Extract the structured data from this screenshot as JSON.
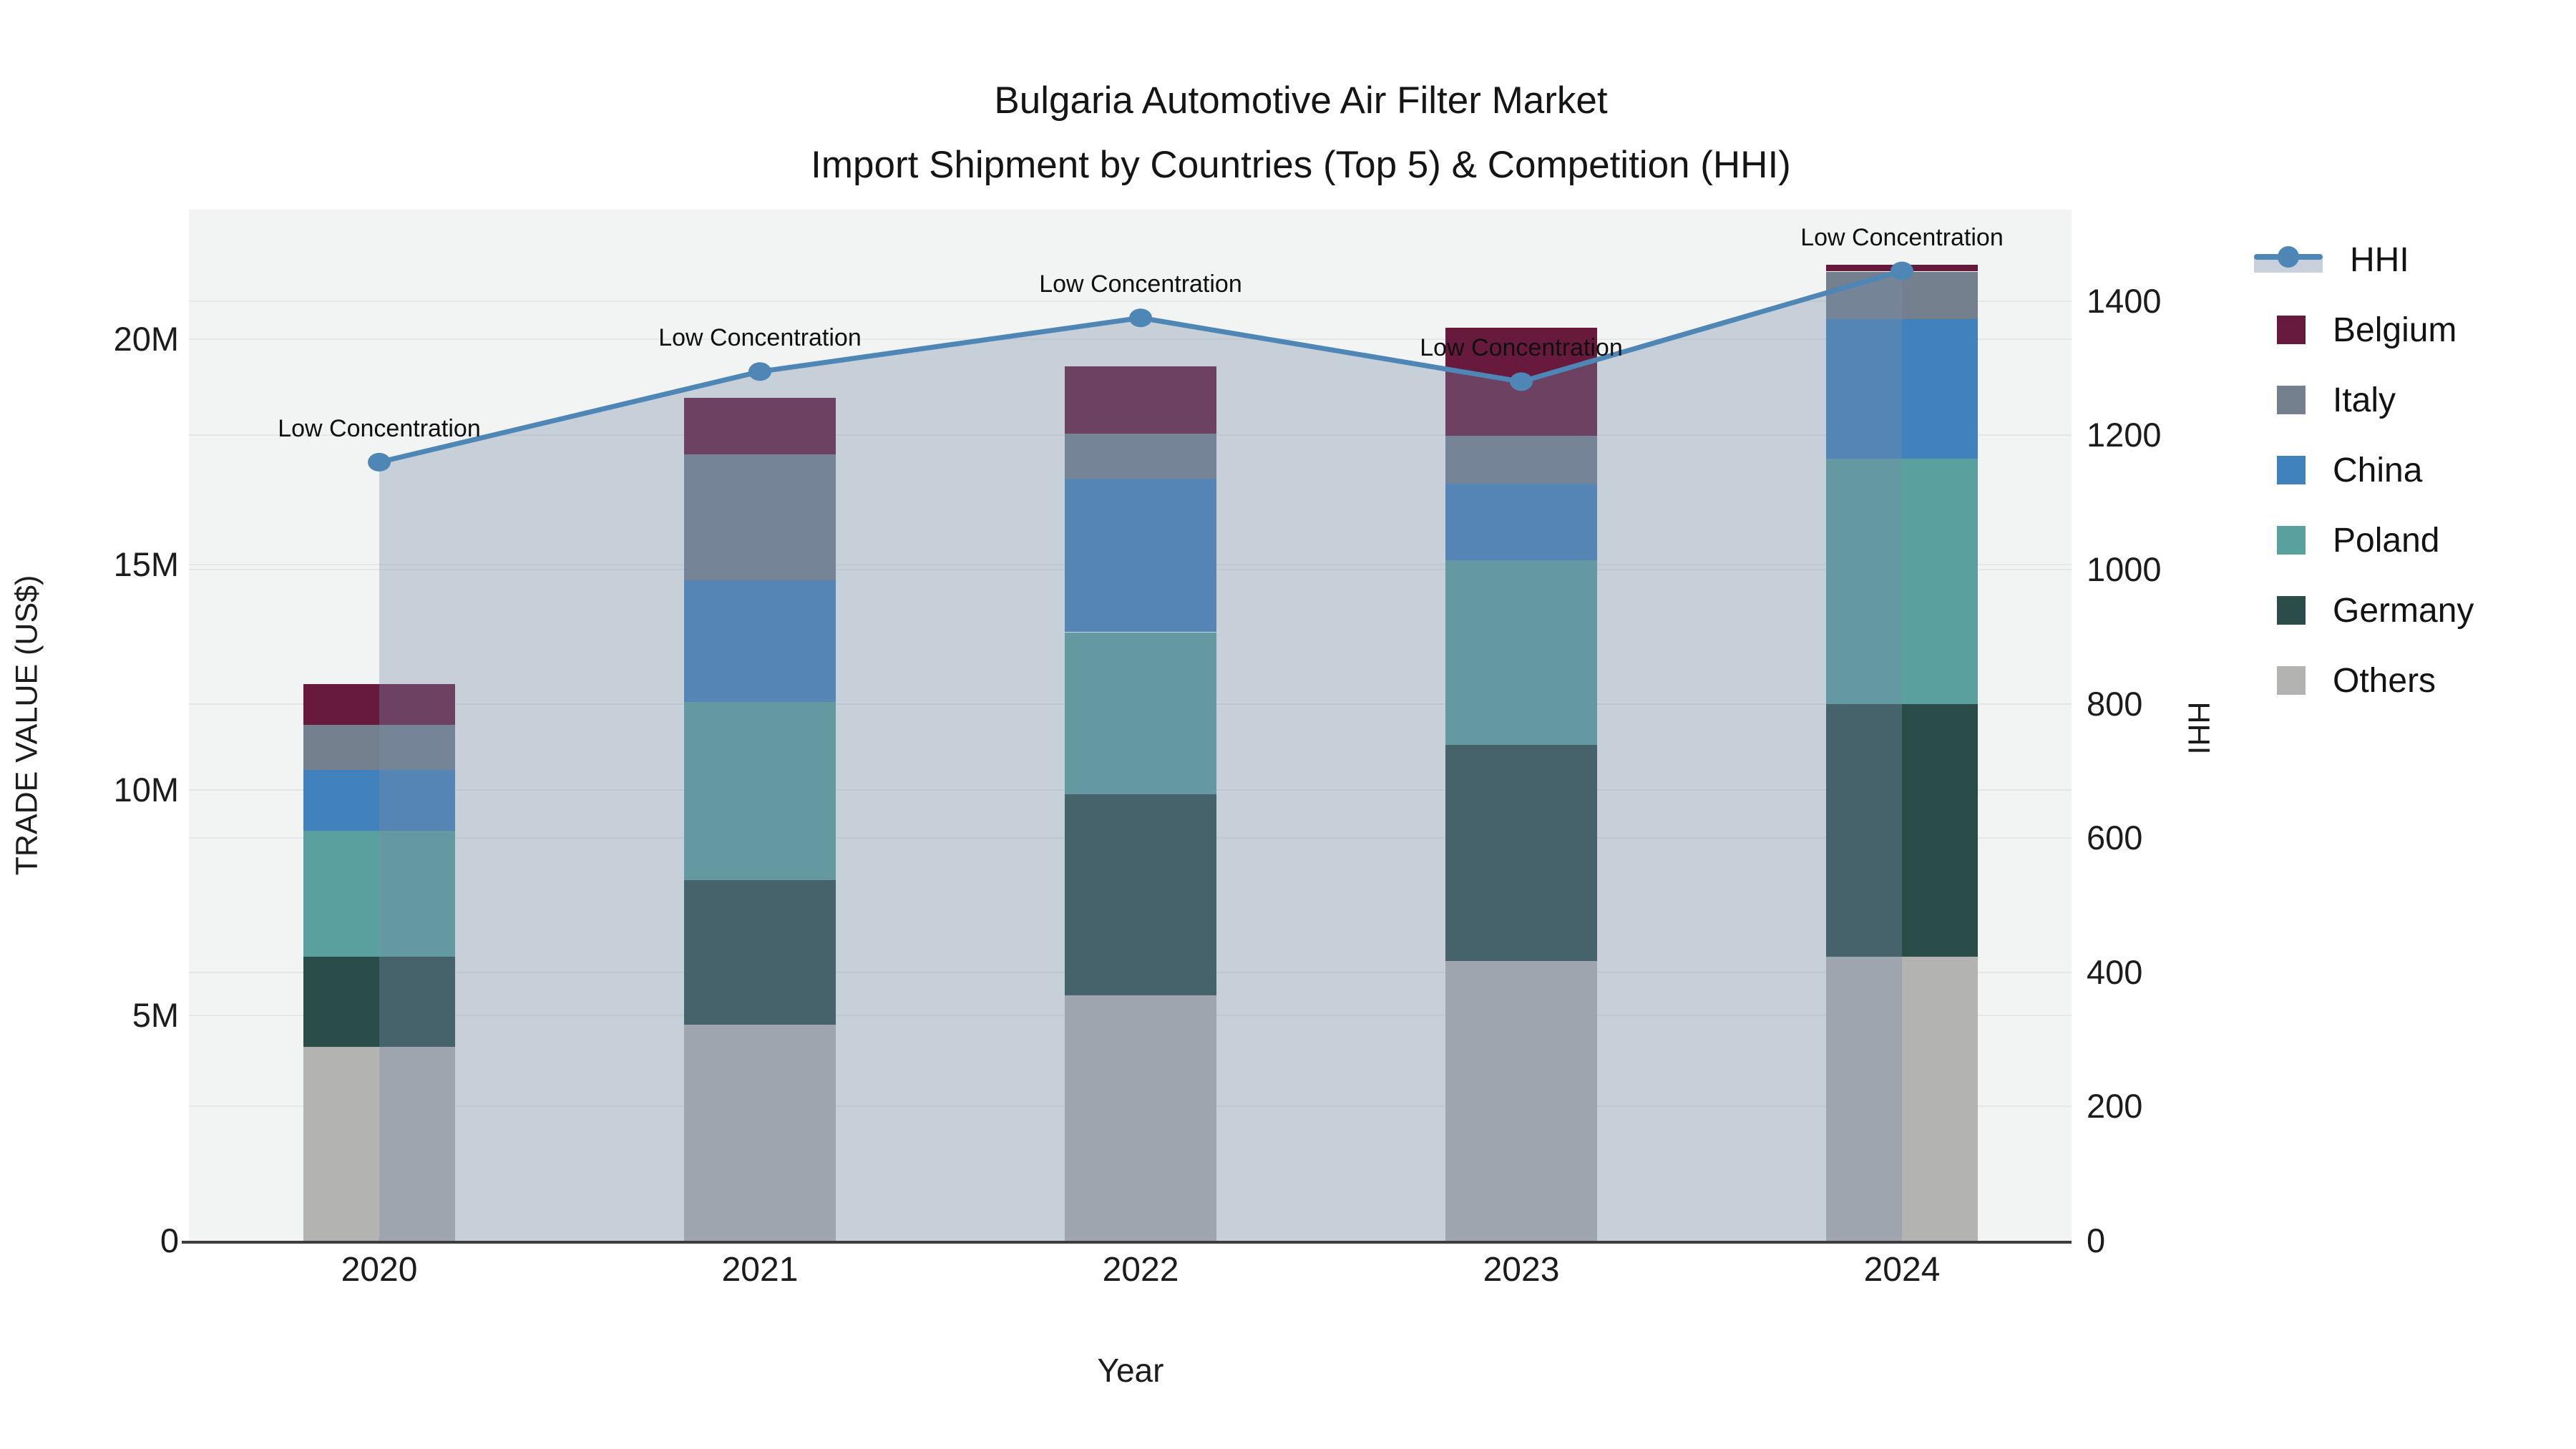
{
  "title": {
    "line1": "Bulgaria Automotive Air Filter Market",
    "line2": "Import Shipment by Countries (Top 5) & Competition (HHI)"
  },
  "axes": {
    "x_title": "Year",
    "y_left_title": "TRADE VALUE (US$)",
    "y_right_title": "HHI",
    "y_left_ticks": [
      {
        "label": "0",
        "value": 0
      },
      {
        "label": "5M",
        "value": 5
      },
      {
        "label": "10M",
        "value": 10
      },
      {
        "label": "15M",
        "value": 15
      },
      {
        "label": "20M",
        "value": 20
      }
    ],
    "y_right_ticks": [
      {
        "label": "0",
        "value": 0
      },
      {
        "label": "200",
        "value": 200
      },
      {
        "label": "400",
        "value": 400
      },
      {
        "label": "600",
        "value": 600
      },
      {
        "label": "800",
        "value": 800
      },
      {
        "label": "1000",
        "value": 1000
      },
      {
        "label": "1200",
        "value": 1200
      },
      {
        "label": "1400",
        "value": 1400
      }
    ]
  },
  "chart_data": {
    "type": "combo (stacked bar + line with area fill)",
    "categories": [
      "2020",
      "2021",
      "2022",
      "2023",
      "2024"
    ],
    "bar_value_unit": "million US$ trade value",
    "stack_order_bottom_to_top": [
      "Others",
      "Germany",
      "Poland",
      "China",
      "Italy",
      "Belgium"
    ],
    "series": [
      {
        "name": "Belgium",
        "color": "#681a3c",
        "values": [
          0.9,
          1.25,
          1.5,
          2.4,
          0.15
        ]
      },
      {
        "name": "Italy",
        "color": "#75808f",
        "values": [
          1.0,
          2.8,
          1.0,
          1.05,
          1.05
        ]
      },
      {
        "name": "China",
        "color": "#4282bc",
        "values": [
          1.35,
          2.7,
          3.4,
          1.7,
          3.1
        ]
      },
      {
        "name": "Poland",
        "color": "#5aa09e",
        "values": [
          2.8,
          3.95,
          3.6,
          4.1,
          5.45
        ]
      },
      {
        "name": "Germany",
        "color": "#2b4d4a",
        "values": [
          2.0,
          3.2,
          4.45,
          4.8,
          5.6
        ]
      },
      {
        "name": "Others",
        "color": "#b3b3b1",
        "values": [
          4.3,
          4.8,
          5.45,
          6.2,
          6.3
        ]
      }
    ],
    "bar_totals_millions": [
      12.35,
      18.7,
      19.4,
      20.25,
      21.65
    ],
    "line_series": {
      "name": "HHI",
      "color": "#4e86b6",
      "area_fill_color": "rgba(120,140,170,0.35)",
      "values": [
        1160,
        1295,
        1375,
        1280,
        1445
      ]
    },
    "annotations": [
      {
        "text": "Low Concentration",
        "category": "2020"
      },
      {
        "text": "Low Concentration",
        "category": "2021"
      },
      {
        "text": "Low Concentration",
        "category": "2022"
      },
      {
        "text": "Low Concentration",
        "category": "2023"
      },
      {
        "text": "Low Concentration",
        "category": "2024"
      }
    ],
    "y_left_range_millions": [
      0,
      22.9
    ],
    "y_right_range": [
      0,
      1536
    ],
    "grid": true,
    "legend_position": "right"
  },
  "legend": {
    "items": [
      {
        "label": "HHI",
        "type": "line",
        "color": "#4e86b6"
      },
      {
        "label": "Belgium",
        "type": "swatch",
        "color": "#681a3c"
      },
      {
        "label": "Italy",
        "type": "swatch",
        "color": "#75808f"
      },
      {
        "label": "China",
        "type": "swatch",
        "color": "#4282bc"
      },
      {
        "label": "Poland",
        "type": "swatch",
        "color": "#5aa09e"
      },
      {
        "label": "Germany",
        "type": "swatch",
        "color": "#2b4d4a"
      },
      {
        "label": "Others",
        "type": "swatch",
        "color": "#b3b3b1"
      }
    ]
  },
  "colors": {
    "plot_background": "#f2f3f3",
    "gridline": "#e5e6e6",
    "axis_line": "#3d3d3d",
    "hhi_line": "#4e86b6"
  }
}
